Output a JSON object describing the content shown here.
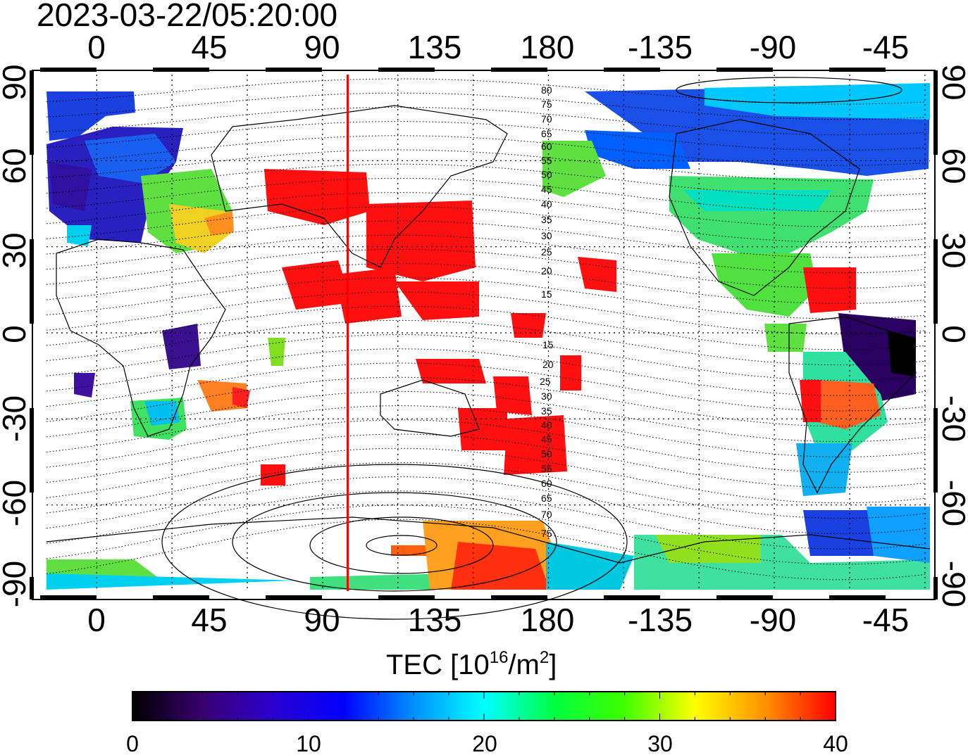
{
  "header": {
    "timestamp": "2023-03-22/05:20:00"
  },
  "map": {
    "top_lon_labels": [
      "0",
      "45",
      "90",
      "135",
      "180",
      "-135",
      "-90",
      "-45"
    ],
    "bottom_lon_labels": [
      "0",
      "45",
      "90",
      "135",
      "180",
      "-135",
      "-90",
      "-45"
    ],
    "left_lat_labels": [
      "90",
      "60",
      "30",
      "0",
      "-30",
      "-60",
      "-90"
    ],
    "right_lat_labels": [
      "90",
      "60",
      "30",
      "0",
      "-30",
      "-60",
      "-90"
    ],
    "magnetic_latitude_labels_north": [
      "80",
      "75",
      "70",
      "65",
      "60",
      "55",
      "50",
      "45",
      "40",
      "35",
      "30",
      "25",
      "20",
      "15"
    ],
    "magnetic_latitude_labels_south": [
      "15",
      "20",
      "25",
      "30",
      "35",
      "40",
      "45",
      "50",
      "55",
      "60",
      "65",
      "70",
      "75"
    ],
    "marker_longitude": 100,
    "marker_color": "#ff0000"
  },
  "colorbar": {
    "title_prefix": "TEC  [10",
    "title_exp": "16",
    "title_unit": "/m",
    "title_unit_exp": "2",
    "title_suffix": "]",
    "tick_labels": [
      "0",
      "10",
      "20",
      "30",
      "40"
    ],
    "min": 0,
    "max": 40,
    "colors": [
      "#000000",
      "#3a0070",
      "#2a00d0",
      "#0000ff",
      "#0090ff",
      "#00ffff",
      "#00ff40",
      "#40ff00",
      "#ffff00",
      "#ff9000",
      "#ff0000"
    ]
  }
}
